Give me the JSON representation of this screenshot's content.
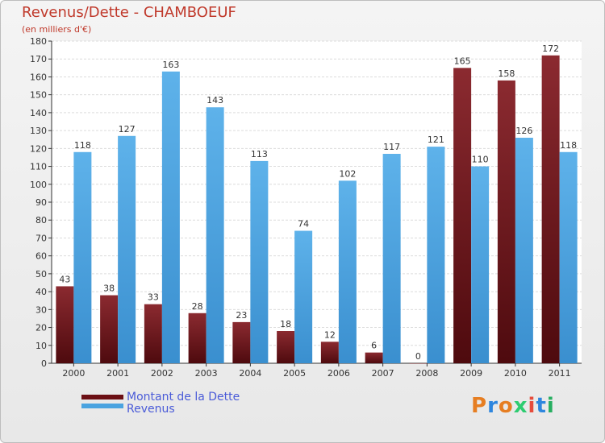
{
  "title": "Revenus/Dette - CHAMBOEUF",
  "subtitle": "(en milliers d'€)",
  "colors": {
    "dette": "#7a1c22",
    "revenus": "#4aa3e0",
    "title": "#c0392b",
    "legend_text": "#4a5bd8"
  },
  "legend": [
    {
      "label": "Montant de la Dette",
      "color": "#6b0f14"
    },
    {
      "label": "Revenus",
      "color": "#4aa3e0"
    }
  ],
  "logo": {
    "letters": [
      "P",
      "r",
      "o",
      "x",
      "i",
      "t",
      "i"
    ],
    "colors": [
      "#e67e22",
      "#2e86de",
      "#e67e22",
      "#2ecc71",
      "#e74c3c",
      "#2e86de",
      "#27ae60"
    ]
  },
  "chart_data": {
    "type": "bar",
    "title": "Revenus/Dette - CHAMBOEUF",
    "ylabel": "(en milliers d'€)",
    "xlabel": "",
    "ylim": [
      0,
      180
    ],
    "yticks": [
      0,
      10,
      20,
      30,
      40,
      50,
      60,
      70,
      80,
      90,
      100,
      110,
      120,
      130,
      140,
      150,
      160,
      170,
      180
    ],
    "grid": true,
    "categories": [
      "2000",
      "2001",
      "2002",
      "2003",
      "2004",
      "2005",
      "2006",
      "2007",
      "2008",
      "2009",
      "2010",
      "2011"
    ],
    "series": [
      {
        "name": "Montant de la Dette",
        "values": [
          43,
          38,
          33,
          28,
          23,
          18,
          12,
          6,
          0,
          165,
          158,
          172
        ]
      },
      {
        "name": "Revenus",
        "values": [
          118,
          127,
          163,
          143,
          113,
          74,
          102,
          117,
          121,
          110,
          126,
          118
        ]
      }
    ]
  }
}
